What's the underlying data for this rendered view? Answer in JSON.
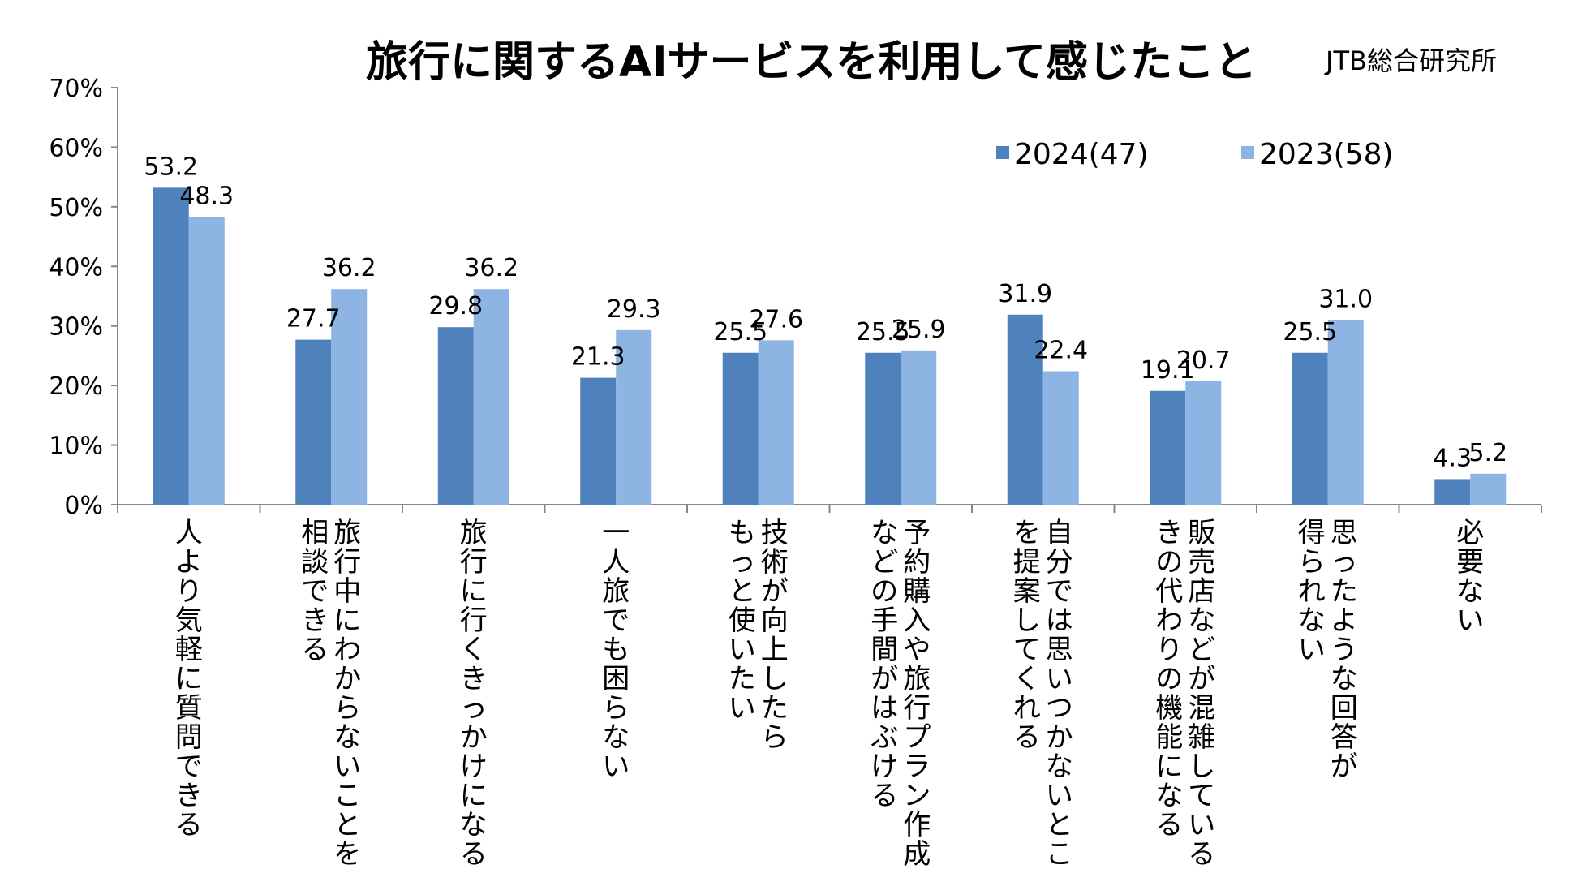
{
  "chart_data": {
    "type": "bar",
    "title": "旅行に関するAIサービスを利用して感じたこと",
    "source": "JTB総合研究所",
    "xlabel": "",
    "ylabel": "",
    "ylim": [
      0,
      70
    ],
    "yticks": [
      "0%",
      "10%",
      "20%",
      "30%",
      "40%",
      "50%",
      "60%",
      "70%"
    ],
    "legend_position": "top-right",
    "categories": [
      [
        "人より気軽に質問できる"
      ],
      [
        "旅行中にわからないことを",
        "相談できる"
      ],
      [
        "旅行に行くきっかけになる"
      ],
      [
        "一人旅でも困らない"
      ],
      [
        "技術が向上したら",
        "もっと使いたい"
      ],
      [
        "予約購入や旅行プラン作成",
        "などの手間がはぶける"
      ],
      [
        "自分では思いつかないところ",
        "を提案してくれる"
      ],
      [
        "販売店などが混雑していると",
        "きの代わりの機能になる"
      ],
      [
        "思ったような回答が",
        "得られない"
      ],
      [
        "必要ない"
      ]
    ],
    "series": [
      {
        "name": "2024(47)",
        "color": "#4f81bd",
        "values": [
          53.2,
          27.7,
          29.8,
          21.3,
          25.5,
          25.5,
          31.9,
          19.1,
          25.5,
          4.3
        ],
        "labels": [
          "53.2",
          "27.7",
          "29.8",
          "21.3",
          "25.5",
          "25.5",
          "31.9",
          "19.1",
          "25.5",
          "4.3"
        ]
      },
      {
        "name": "2023(58)",
        "color": "#8eb4e3",
        "values": [
          48.3,
          36.2,
          36.2,
          29.3,
          27.6,
          25.9,
          22.4,
          20.7,
          31.0,
          5.2
        ],
        "labels": [
          "48.3",
          "36.2",
          "36.2",
          "29.3",
          "27.6",
          "25.9",
          "22.4",
          "20.7",
          "31.0",
          "5.2"
        ]
      }
    ]
  }
}
